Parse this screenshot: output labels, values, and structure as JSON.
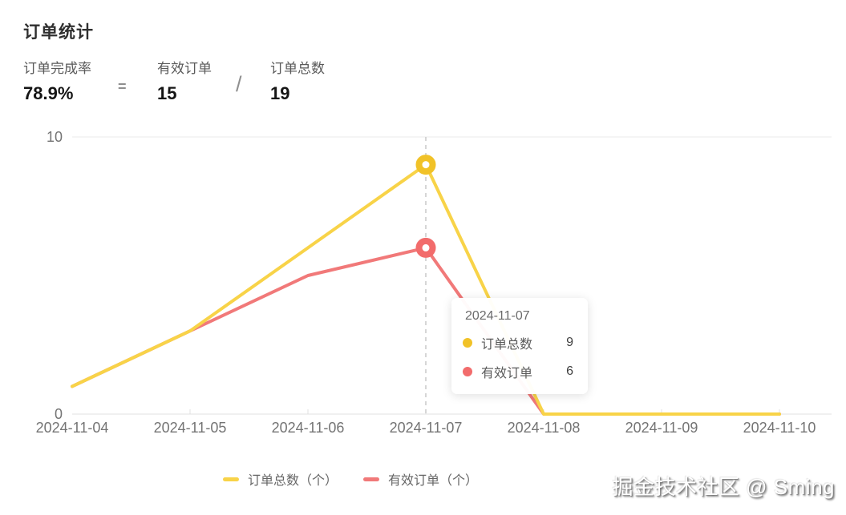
{
  "header": {
    "title": "订单统计"
  },
  "stats": {
    "rate_label": "订单完成率",
    "rate_value": "78.9%",
    "equals_sign": "=",
    "valid_label": "有效订单",
    "valid_value": "15",
    "divide_sign": "/",
    "total_label": "订单总数",
    "total_value": "19"
  },
  "chart_data": {
    "type": "line",
    "title": "",
    "xlabel": "",
    "ylabel": "",
    "x": [
      "2024-11-04",
      "2024-11-05",
      "2024-11-06",
      "2024-11-07",
      "2024-11-08",
      "2024-11-09",
      "2024-11-10"
    ],
    "series": [
      {
        "key": "total-orders",
        "name": "订单总数（个）",
        "values": [
          1,
          3,
          6,
          9,
          0,
          0,
          0
        ],
        "line_color": "#F8D348",
        "dot_color": "#F1C228"
      },
      {
        "key": "valid-orders",
        "name": "有效订单（个）",
        "values": [
          1,
          3,
          5,
          6,
          0,
          0,
          0
        ],
        "line_color": "#F17979",
        "dot_color": "#F26C6C"
      }
    ],
    "ylim": [
      0,
      10
    ],
    "y_ticks": [
      10,
      0
    ],
    "highlight_index": 3,
    "legend_position": "bottom",
    "grid": "horizontal-top-only",
    "hover_guide": "dashed-vertical"
  },
  "tooltip": {
    "title": "2024-11-07",
    "rows": [
      {
        "label": "订单总数",
        "value": "9"
      },
      {
        "label": "有效订单",
        "value": "6"
      }
    ]
  },
  "legend": {
    "items": [
      {
        "label": "订单总数（个）"
      },
      {
        "label": "有效订单（个）"
      }
    ]
  },
  "watermark": {
    "text": "掘金技术社区 @ Sming"
  }
}
